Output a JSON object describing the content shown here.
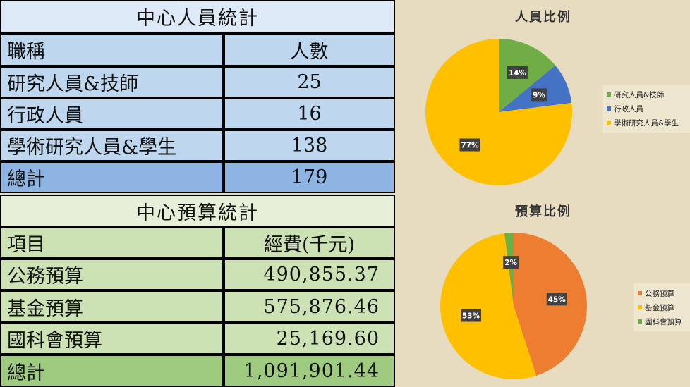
{
  "staff_table": {
    "title": "中心人員統計",
    "header": [
      "職稱",
      "人數"
    ],
    "rows": [
      {
        "label": "研究人員&技師",
        "value": "25"
      },
      {
        "label": "行政人員",
        "value": "16"
      },
      {
        "label": "學術研究人員&學生",
        "value": "138"
      }
    ],
    "total": {
      "label": "總計",
      "value": "179"
    }
  },
  "budget_table": {
    "title": "中心預算統計",
    "header": [
      "項目",
      "經費(千元)"
    ],
    "rows": [
      {
        "label": "公務預算",
        "value": "490,855.37"
      },
      {
        "label": "基金預算",
        "value": "575,876.46"
      },
      {
        "label": "國科會預算",
        "value": "25,169.60"
      }
    ],
    "total": {
      "label": "總計",
      "value": "1,091,901.44"
    }
  },
  "chart_data": [
    {
      "type": "pie",
      "title": "人員比例",
      "labels": [
        "研究人員&技師",
        "行政人員",
        "學術研究人員&學生"
      ],
      "values": [
        14,
        9,
        77
      ],
      "data_labels": [
        "14%",
        "9%",
        "77%"
      ],
      "colors": [
        "#70ad47",
        "#4472c4",
        "#ffc000"
      ],
      "legend": "right"
    },
    {
      "type": "pie",
      "title": "預算比例",
      "labels": [
        "公務預算",
        "基金預算",
        "國科會預算"
      ],
      "values": [
        45,
        53,
        2
      ],
      "data_labels": [
        "45%",
        "53%",
        "2%"
      ],
      "colors": [
        "#ed7d31",
        "#ffc000",
        "#70ad47"
      ],
      "legend": "right"
    }
  ]
}
